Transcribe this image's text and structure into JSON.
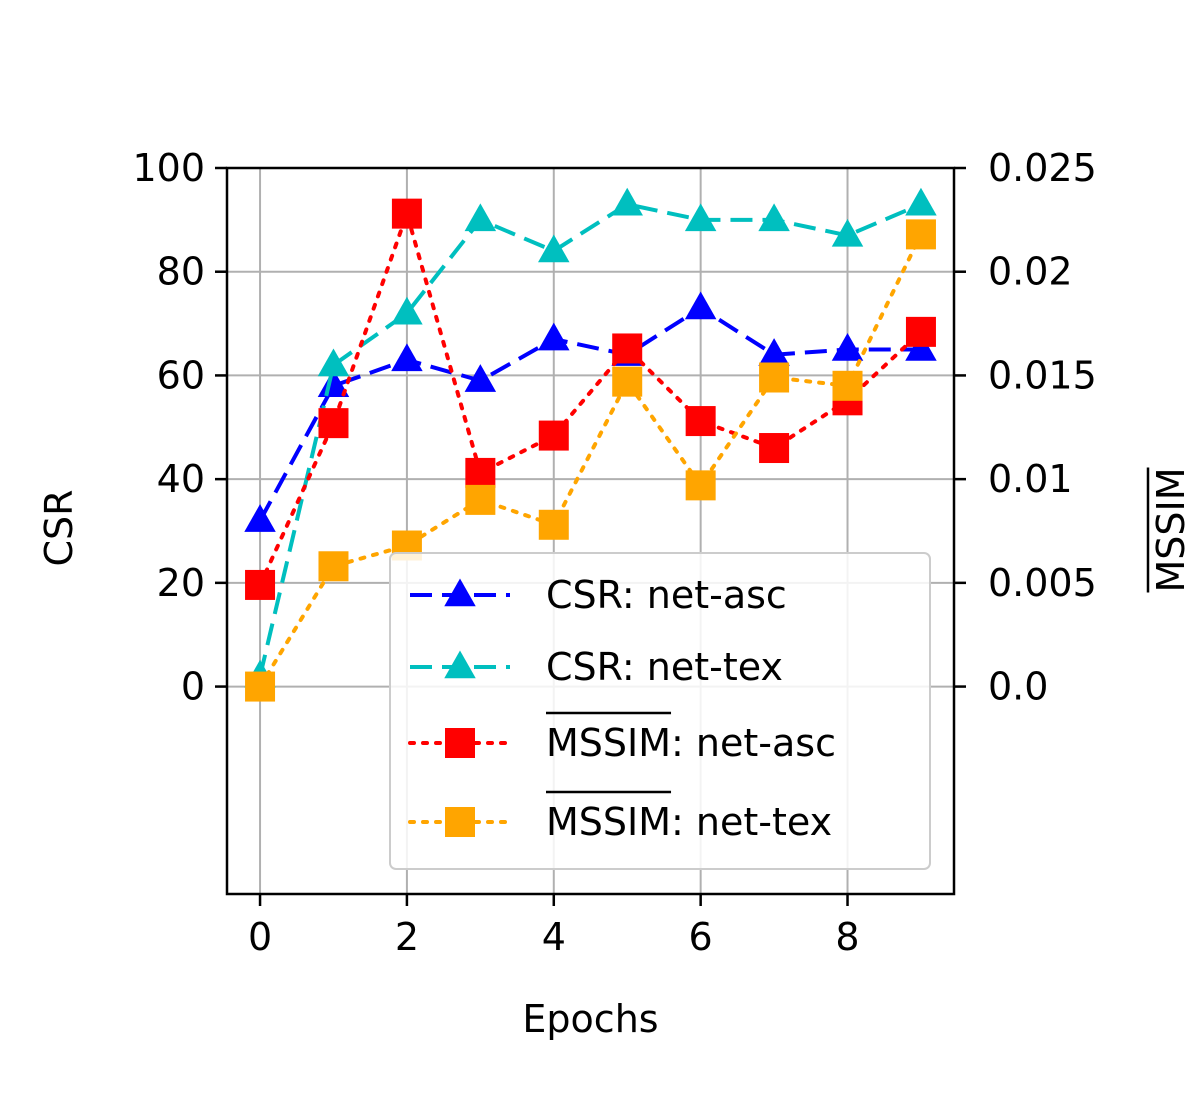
{
  "chart_data": {
    "type": "line",
    "title": "",
    "xlabel": "Epochs",
    "ylabel": "CSR",
    "y2label": "MSSIM",
    "y2label_overline": true,
    "xlim": [
      -0.45,
      9.45
    ],
    "ylim": [
      -40,
      100
    ],
    "y2lim": [
      -0.01,
      0.025
    ],
    "x_ticks": [
      "0",
      "2",
      "4",
      "6",
      "8"
    ],
    "x_tick_values": [
      0,
      2,
      4,
      6,
      8
    ],
    "y_ticks": [
      "0",
      "20",
      "40",
      "60",
      "80",
      "100"
    ],
    "y_tick_values": [
      0,
      20,
      40,
      60,
      80,
      100
    ],
    "y2_ticks": [
      "0.0",
      "0.005",
      "0.01",
      "0.015",
      "0.02",
      "0.025"
    ],
    "y2_tick_values": [
      0,
      0.005,
      0.01,
      0.015,
      0.02,
      0.025
    ],
    "grid": true,
    "legend_position": "lower-right",
    "x": [
      0,
      1,
      2,
      3,
      4,
      5,
      6,
      7,
      8,
      9
    ],
    "series": [
      {
        "name": "CSR: net-asc",
        "label_prefix": "CSR",
        "label_suffix": ": net-asc",
        "overline": false,
        "axis": "left",
        "color": "#0000ff",
        "dash": "dashed",
        "marker": "triangle",
        "values": [
          32,
          58,
          63,
          59,
          67,
          64,
          73,
          64,
          65,
          65
        ]
      },
      {
        "name": "CSR: net-tex",
        "label_prefix": "CSR",
        "label_suffix": ": net-tex",
        "overline": false,
        "axis": "left",
        "color": "#00bfbf",
        "dash": "dashed",
        "marker": "triangle",
        "values": [
          2,
          62,
          72,
          90,
          84,
          93,
          90,
          90,
          87,
          93
        ]
      },
      {
        "name": "MSSIM: net-asc",
        "label_prefix": "MSSIM",
        "label_suffix": ": net-asc",
        "overline": true,
        "axis": "right",
        "color": "#ff0000",
        "dash": "dotted",
        "marker": "square",
        "values": [
          0.0049,
          0.0127,
          0.0228,
          0.0103,
          0.0121,
          0.0163,
          0.0128,
          0.0115,
          0.0138,
          0.0171
        ]
      },
      {
        "name": "MSSIM: net-tex",
        "label_prefix": "MSSIM",
        "label_suffix": ": net-tex",
        "overline": true,
        "axis": "right",
        "color": "#ffa500",
        "dash": "dotted",
        "marker": "square",
        "values": [
          0.0,
          0.0058,
          0.0068,
          0.009,
          0.0078,
          0.0147,
          0.0097,
          0.0149,
          0.0145,
          0.0218
        ]
      }
    ]
  }
}
